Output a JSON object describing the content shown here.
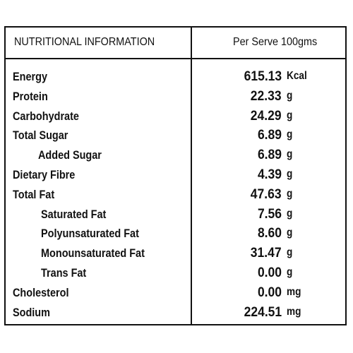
{
  "header": {
    "left": "NUTRITIONAL INFORMATION",
    "right": "Per Serve 100gms"
  },
  "rows": [
    {
      "label": "Energy",
      "value": "615.13",
      "unit": "Kcal",
      "indent": 0
    },
    {
      "label": "Protein",
      "value": "22.33",
      "unit": "g",
      "indent": 0
    },
    {
      "label": "Carbohydrate",
      "value": "24.29",
      "unit": "g",
      "indent": 0
    },
    {
      "label": "Total Sugar",
      "value": "6.89",
      "unit": "g",
      "indent": 0
    },
    {
      "label": "Added Sugar",
      "value": "6.89",
      "unit": "g",
      "indent": 1
    },
    {
      "label": "Dietary Fibre",
      "value": "4.39",
      "unit": "g",
      "indent": 0
    },
    {
      "label": "Total Fat",
      "value": "47.63",
      "unit": "g",
      "indent": 0
    },
    {
      "label": "Saturated Fat",
      "value": "7.56",
      "unit": "g",
      "indent": 2
    },
    {
      "label": "Polyunsaturated Fat",
      "value": "8.60",
      "unit": "g",
      "indent": 2
    },
    {
      "label": "Monounsaturated Fat",
      "value": "31.47",
      "unit": "g",
      "indent": 2
    },
    {
      "label": "Trans Fat",
      "value": "0.00",
      "unit": "g",
      "indent": 2
    },
    {
      "label": "Cholesterol",
      "value": "0.00",
      "unit": "mg",
      "indent": 0
    },
    {
      "label": "Sodium",
      "value": "224.51",
      "unit": "mg",
      "indent": 0
    }
  ]
}
